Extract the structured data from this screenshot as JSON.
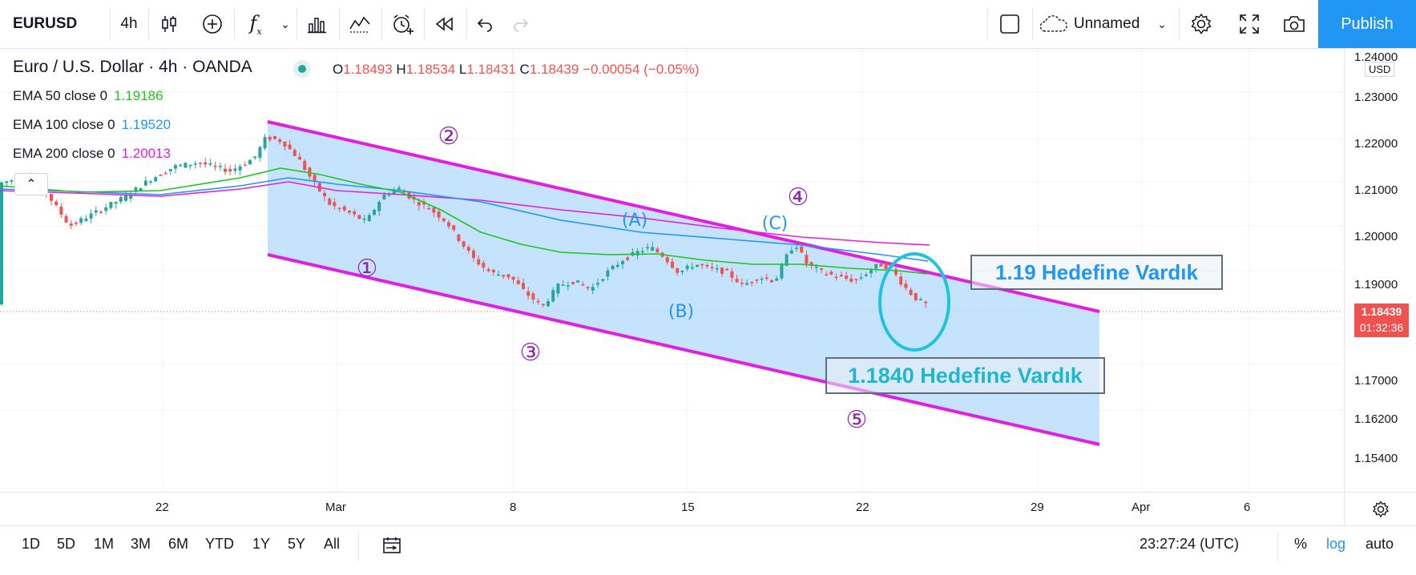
{
  "toolbar": {
    "symbol": "EURUSD",
    "interval": "4h",
    "layout_name": "Unnamed",
    "publish_label": "Publish"
  },
  "legend": {
    "title": "Euro / U.S. Dollar · 4h · OANDA",
    "open_key": "O",
    "open": "1.18493",
    "high_key": "H",
    "high": "1.18534",
    "low_key": "L",
    "low": "1.18431",
    "close_key": "C",
    "close": "1.18439",
    "change": "−0.00054 (−0.05%)"
  },
  "indicators": [
    {
      "label": "EMA 50 close 0",
      "value": "1.19186",
      "color": "#22c31e"
    },
    {
      "label": "EMA 100 close 0",
      "value": "1.19520",
      "color": "#2196f3"
    },
    {
      "label": "EMA 200 close 0",
      "value": "1.20013",
      "color": "#e020e0"
    }
  ],
  "price_scale": {
    "currency": "USD",
    "labels": [
      "1.24000",
      "1.23000",
      "1.22000",
      "1.21000",
      "1.20000",
      "1.19000",
      "1.17000",
      "1.16200",
      "1.15400"
    ],
    "last_price": "1.18439",
    "countdown": "01:32:36"
  },
  "time_scale": {
    "labels": [
      "22",
      "Mar",
      "8",
      "15",
      "22",
      "29",
      "Apr",
      "6"
    ]
  },
  "annotations": {
    "wave_labels": [
      "②",
      "①",
      "③",
      "④",
      "⑤"
    ],
    "corrective_labels": [
      "(A)",
      "(B)",
      "(C)"
    ],
    "target_1": "1.19 Hedefine Vardık",
    "target_2": "1.1840 Hedefine Vardık"
  },
  "bottom_bar": {
    "ranges": [
      "1D",
      "5D",
      "1M",
      "3M",
      "6M",
      "YTD",
      "1Y",
      "5Y",
      "All"
    ],
    "clock": "23:27:24 (UTC)",
    "percent": "%",
    "log": "log",
    "auto": "auto"
  },
  "colors": {
    "bull": "#26a69a",
    "bear": "#ef5350",
    "channel": "#e020e0",
    "channel_fill": "#bbdefb",
    "accent": "#2196f3"
  }
}
